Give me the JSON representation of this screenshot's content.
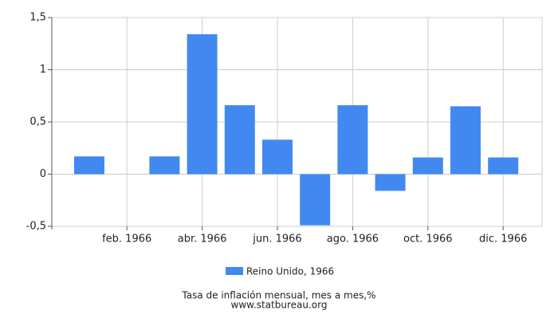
{
  "chart_data": {
    "type": "bar",
    "title": "Tasa de inflación mensual, mes a mes,%",
    "source": "www.statbureau.org",
    "categories": [
      null,
      "feb. 1966",
      null,
      "abr. 1966",
      null,
      "jun. 1966",
      null,
      "ago. 1966",
      null,
      "oct. 1966",
      null,
      "dic. 1966"
    ],
    "series": [
      {
        "name": "Reino Unido, 1966",
        "color": "#4189f0",
        "values": [
          0.17,
          0,
          0.17,
          1.34,
          0.66,
          0.33,
          -0.49,
          0.66,
          -0.16,
          0.16,
          0.65,
          0.16
        ]
      }
    ],
    "ylim": [
      -0.5,
      1.5
    ],
    "yticks": [
      {
        "value": -0.5,
        "label": "-0,5"
      },
      0,
      {
        "value": 0.5,
        "label": "0,5"
      },
      1,
      {
        "value": 1.5,
        "label": "1,5"
      }
    ],
    "grid": true
  }
}
